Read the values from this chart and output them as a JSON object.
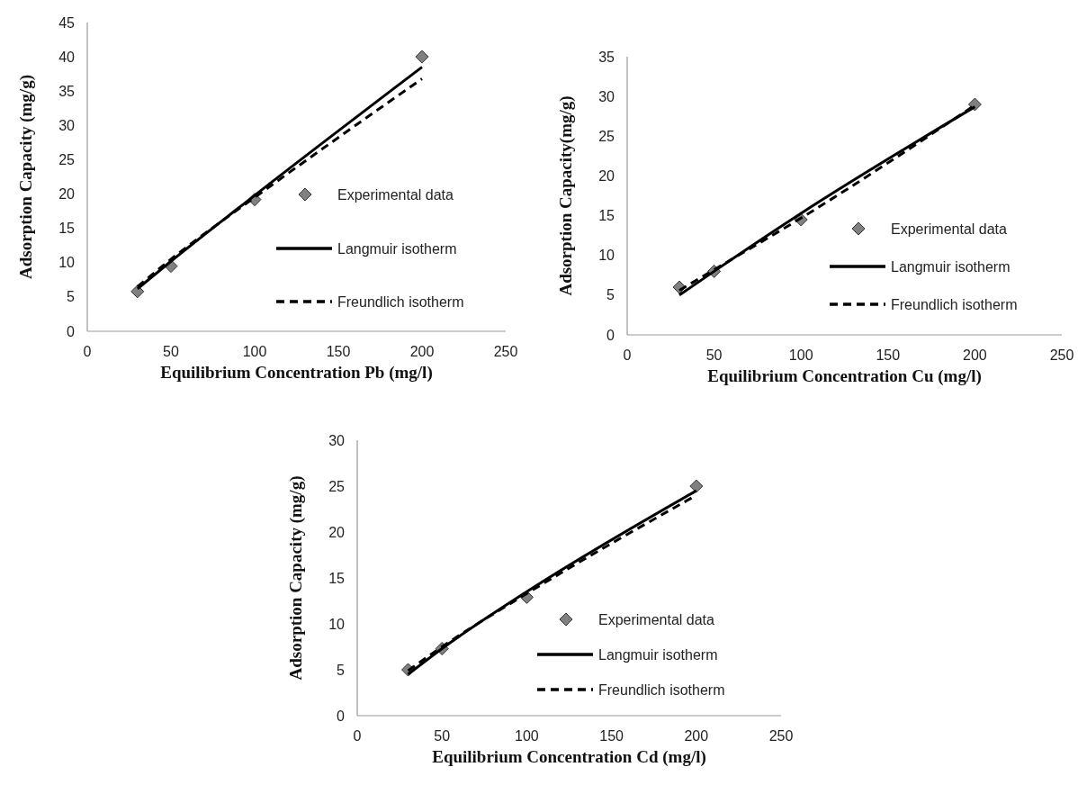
{
  "chart_data": [
    {
      "type": "scatter",
      "xlabel": "Equilibrium Concentration Pb  (mg/l)",
      "ylabel": "Adsorption Capacity (mg/g)",
      "xlim": [
        0,
        250
      ],
      "xticks": [
        0,
        50,
        100,
        150,
        200,
        250
      ],
      "ylim": [
        0,
        45
      ],
      "yticks": [
        0,
        5,
        10,
        15,
        20,
        25,
        30,
        35,
        40,
        45
      ],
      "grid": false,
      "legend": "bottom right",
      "x": [
        30,
        50,
        100,
        200
      ],
      "series": [
        {
          "name": "Experimental data",
          "marker": "diamond",
          "color": "#808080",
          "values": [
            5.8,
            9.5,
            19.2,
            40
          ]
        },
        {
          "name": "Langmuir isotherm",
          "type": "line",
          "marker": "none",
          "line_style": "solid",
          "color": "#000000",
          "values": [
            6.2,
            10.2,
            19.8,
            38.5
          ]
        },
        {
          "name": "Freundlich isotherm",
          "type": "line",
          "marker": "none",
          "line_style": "dashed",
          "color": "#000000",
          "values": [
            6.5,
            10.5,
            19.5,
            36.8
          ]
        }
      ]
    },
    {
      "type": "scatter",
      "xlabel": "Equilibrium Concentration Cu (mg/l)",
      "ylabel": "Adsorption Capacity(mg/g)",
      "xlim": [
        0,
        250
      ],
      "xticks": [
        0,
        50,
        100,
        150,
        200,
        250
      ],
      "ylim": [
        0,
        35
      ],
      "yticks": [
        0,
        5,
        10,
        15,
        20,
        25,
        30,
        35
      ],
      "grid": false,
      "legend": "bottom right",
      "x": [
        30,
        50,
        100,
        200
      ],
      "series": [
        {
          "name": "Experimental data",
          "marker": "diamond",
          "color": "#808080",
          "values": [
            6,
            8,
            14.5,
            29
          ]
        },
        {
          "name": "Langmuir isotherm",
          "type": "line",
          "marker": "none",
          "line_style": "solid",
          "color": "#000000",
          "values": [
            5,
            8,
            15.3,
            28.7
          ]
        },
        {
          "name": "Freundlich isotherm",
          "type": "line",
          "marker": "none",
          "line_style": "dashed",
          "color": "#000000",
          "values": [
            5.6,
            8.2,
            14.7,
            28.9
          ]
        }
      ]
    },
    {
      "type": "scatter",
      "xlabel": "Equilibrium Concentration Cd (mg/l)",
      "ylabel": "Adsorption Capacity (mg/g)",
      "xlim": [
        0,
        250
      ],
      "xticks": [
        0,
        50,
        100,
        150,
        200,
        250
      ],
      "ylim": [
        0,
        30
      ],
      "yticks": [
        0,
        5,
        10,
        15,
        20,
        25,
        30
      ],
      "grid": false,
      "legend": "bottom right",
      "x": [
        30,
        50,
        100,
        200
      ],
      "series": [
        {
          "name": "Experimental data",
          "marker": "diamond",
          "color": "#808080",
          "values": [
            5,
            7.3,
            12.9,
            25
          ]
        },
        {
          "name": "Langmuir isotherm",
          "type": "line",
          "marker": "none",
          "line_style": "solid",
          "color": "#000000",
          "values": [
            4.5,
            7.3,
            13.5,
            24.5
          ]
        },
        {
          "name": "Freundlich isotherm",
          "type": "line",
          "marker": "none",
          "line_style": "dashed",
          "color": "#000000",
          "values": [
            4.9,
            7.5,
            13.3,
            24
          ]
        }
      ]
    }
  ]
}
